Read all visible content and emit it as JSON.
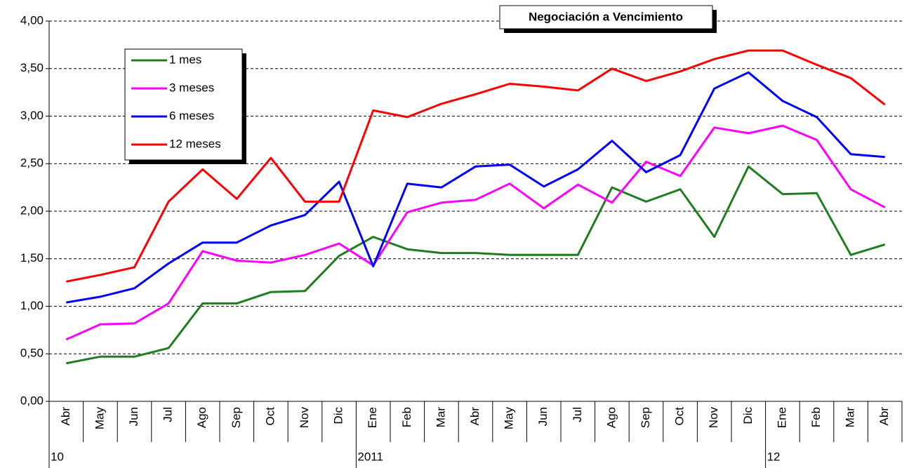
{
  "chart_data": {
    "type": "line",
    "title": "Negociación a Vencimiento",
    "categories": [
      "Abr",
      "May",
      "Jun",
      "Jul",
      "Ago",
      "Sep",
      "Oct",
      "Nov",
      "Dic",
      "Ene",
      "Feb",
      "Mar",
      "Abr",
      "May",
      "Jun",
      "Jul",
      "Ago",
      "Sep",
      "Oct",
      "Nov",
      "Dic",
      "Ene",
      "Feb",
      "Mar",
      "Abr"
    ],
    "category_groups": [
      "10",
      null,
      null,
      null,
      null,
      null,
      null,
      null,
      null,
      "2011",
      null,
      null,
      null,
      null,
      null,
      null,
      null,
      null,
      null,
      null,
      null,
      "12",
      null,
      null,
      null
    ],
    "series": [
      {
        "name": "1 mes",
        "color": "#1e7d1e",
        "values": [
          0.4,
          0.47,
          0.47,
          0.56,
          1.03,
          1.03,
          1.15,
          1.16,
          1.53,
          1.73,
          1.6,
          1.56,
          1.56,
          1.54,
          1.54,
          1.54,
          2.25,
          2.1,
          2.23,
          1.73,
          2.47,
          2.18,
          2.19,
          1.54,
          1.65
        ]
      },
      {
        "name": "3 meses",
        "color": "#ff00ff",
        "values": [
          0.65,
          0.81,
          0.82,
          1.03,
          1.58,
          1.48,
          1.46,
          1.54,
          1.66,
          1.43,
          1.99,
          2.09,
          2.12,
          2.29,
          2.03,
          2.28,
          2.09,
          2.52,
          2.37,
          2.88,
          2.82,
          2.9,
          2.75,
          2.23,
          2.04
        ]
      },
      {
        "name": "6 meses",
        "color": "#0000ff",
        "values": [
          1.04,
          1.1,
          1.19,
          1.45,
          1.67,
          1.67,
          1.85,
          1.96,
          2.31,
          1.42,
          2.29,
          2.25,
          2.47,
          2.49,
          2.26,
          2.44,
          2.74,
          2.41,
          2.59,
          3.29,
          3.46,
          3.16,
          2.99,
          2.6,
          2.57
        ]
      },
      {
        "name": "12 meses",
        "color": "#ff0000",
        "values": [
          1.26,
          1.33,
          1.41,
          2.1,
          2.44,
          2.13,
          2.56,
          2.1,
          2.1,
          3.06,
          2.99,
          3.13,
          3.23,
          3.34,
          3.31,
          3.27,
          3.5,
          3.37,
          3.47,
          3.6,
          3.69,
          3.69,
          3.54,
          3.4,
          3.12
        ]
      }
    ],
    "ylim": [
      0,
      4
    ],
    "yticks": [
      {
        "value": 0,
        "label": "0,00"
      },
      {
        "value": 0.5,
        "label": "0,50"
      },
      {
        "value": 1,
        "label": "1,00"
      },
      {
        "value": 1.5,
        "label": "1,50"
      },
      {
        "value": 2,
        "label": "2,00"
      },
      {
        "value": 2.5,
        "label": "2,50"
      },
      {
        "value": 3,
        "label": "3,00"
      },
      {
        "value": 3.5,
        "label": "3,50"
      },
      {
        "value": 4,
        "label": "4,00"
      }
    ],
    "grid": true
  }
}
